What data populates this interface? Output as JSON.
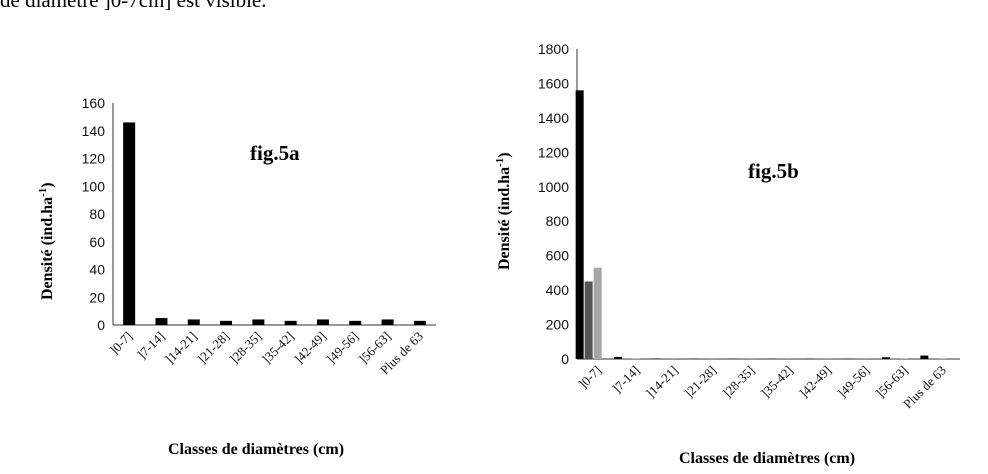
{
  "top_text": "de diamètre ]0-7cm] est visible.",
  "chart_data": [
    {
      "type": "bar",
      "annotation": "fig.5a",
      "ylabel": "Densité (ind.ha",
      "ylabel_sup": "-1",
      "ylabel_end": ")",
      "xlabel": "Classes de diamètres (cm)",
      "ylim": [
        0,
        160
      ],
      "yticks": [
        0,
        20,
        40,
        60,
        80,
        100,
        120,
        140,
        160
      ],
      "categories": [
        "]0-7]",
        "]7-14]",
        "]14-21]",
        "]21-28]",
        "]28-35]",
        "]35-42]",
        "]42-49]",
        "]49-56]",
        "]56-63]",
        "Plus de 63"
      ],
      "series": [
        {
          "color": "#000000",
          "values": [
            146,
            5,
            4,
            3,
            4,
            3,
            4,
            3,
            4,
            3
          ]
        }
      ]
    },
    {
      "type": "bar",
      "annotation": "fig.5b",
      "ylabel": "Densité (ind.ha",
      "ylabel_sup": "-1",
      "ylabel_end": ")",
      "xlabel": "Classes de diamètres (cm)",
      "ylim": [
        0,
        1800
      ],
      "yticks": [
        0,
        200,
        400,
        600,
        800,
        1000,
        1200,
        1400,
        1600,
        1800
      ],
      "categories": [
        "]0-7]",
        "]7-14]",
        "]14-21]",
        "]21-28]",
        "]28-35]",
        "]35-42]",
        "]42-49]",
        "]49-56]",
        "]56-63]",
        "Plus de 63"
      ],
      "series": [
        {
          "color": "#000000",
          "values": [
            1560,
            12,
            3,
            2,
            2,
            2,
            2,
            2,
            10,
            20
          ]
        },
        {
          "color": "#555555",
          "values": [
            450,
            2,
            1,
            1,
            1,
            1,
            1,
            1,
            2,
            2
          ]
        },
        {
          "color": "#a6a6a6",
          "values": [
            530,
            2,
            1,
            1,
            1,
            1,
            1,
            1,
            2,
            2
          ]
        }
      ]
    }
  ]
}
